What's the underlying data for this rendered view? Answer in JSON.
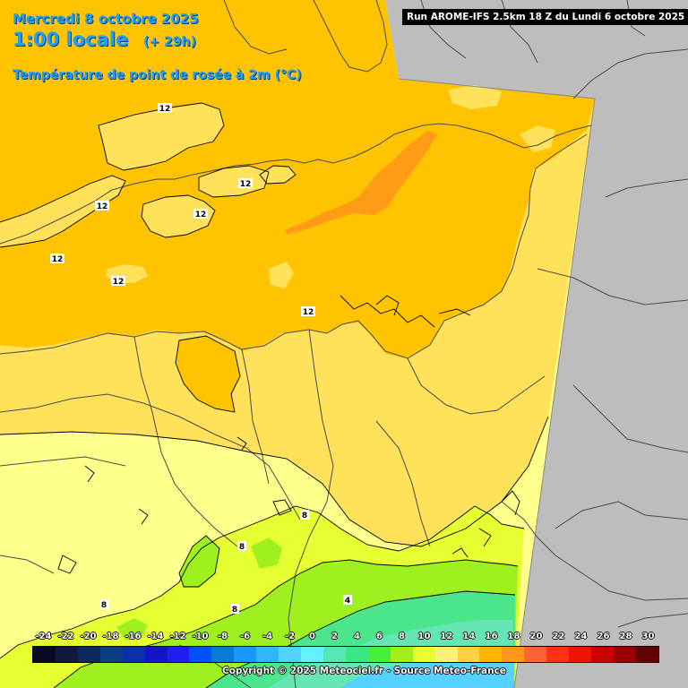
{
  "header": {
    "date": "Mercredi 8 octobre 2025",
    "time": "1:00 locale",
    "lead": "(+ 29h)",
    "variable": "Température de point de rosée à 2m (°C)"
  },
  "run_info": "Run AROME-IFS 2.5km 18 Z du Lundi 6 octobre 2025",
  "isoline_labels": [
    "12",
    "12",
    "12",
    "12",
    "12",
    "12",
    "12",
    "8",
    "8",
    "8",
    "8",
    "4"
  ],
  "scale": {
    "labels": [
      "-24",
      "-22",
      "-20",
      "-18",
      "-16",
      "-14",
      "-12",
      "-10",
      "-8",
      "-6",
      "-4",
      "-2",
      "0",
      "2",
      "4",
      "6",
      "8",
      "10",
      "12",
      "14",
      "16",
      "18",
      "20",
      "22",
      "24",
      "26",
      "28",
      "30"
    ],
    "colors": [
      "#0a0a1e",
      "#0f1a3c",
      "#0a2a5c",
      "#0b3d84",
      "#0b2fa8",
      "#1414c8",
      "#1e1ef0",
      "#0050ff",
      "#0a7ad8",
      "#1e96ff",
      "#33b4ff",
      "#55d2ff",
      "#66f0ff",
      "#5ae6b4",
      "#3ce682",
      "#46f03c",
      "#a0f01e",
      "#e6ff32",
      "#fff078",
      "#ffd246",
      "#ffb400",
      "#ff961e",
      "#ff6432",
      "#ff3214",
      "#f01400",
      "#c80000",
      "#960000",
      "#640000"
    ]
  },
  "copyright": "Copyright © 2025 Meteociel.fr - Source Meteo-France",
  "colors": {
    "background": "#bdbdbd",
    "title": "#1ea0ff",
    "orange_12_14": "#ffc300",
    "orange_14_16": "#ff9b14",
    "yellow_10_12": "#ffe15a",
    "yellow_8_10": "#ffff8c",
    "lime_6_8": "#e6ff32",
    "green_4_6": "#9ef01e",
    "teal_2_4": "#4be68c"
  }
}
